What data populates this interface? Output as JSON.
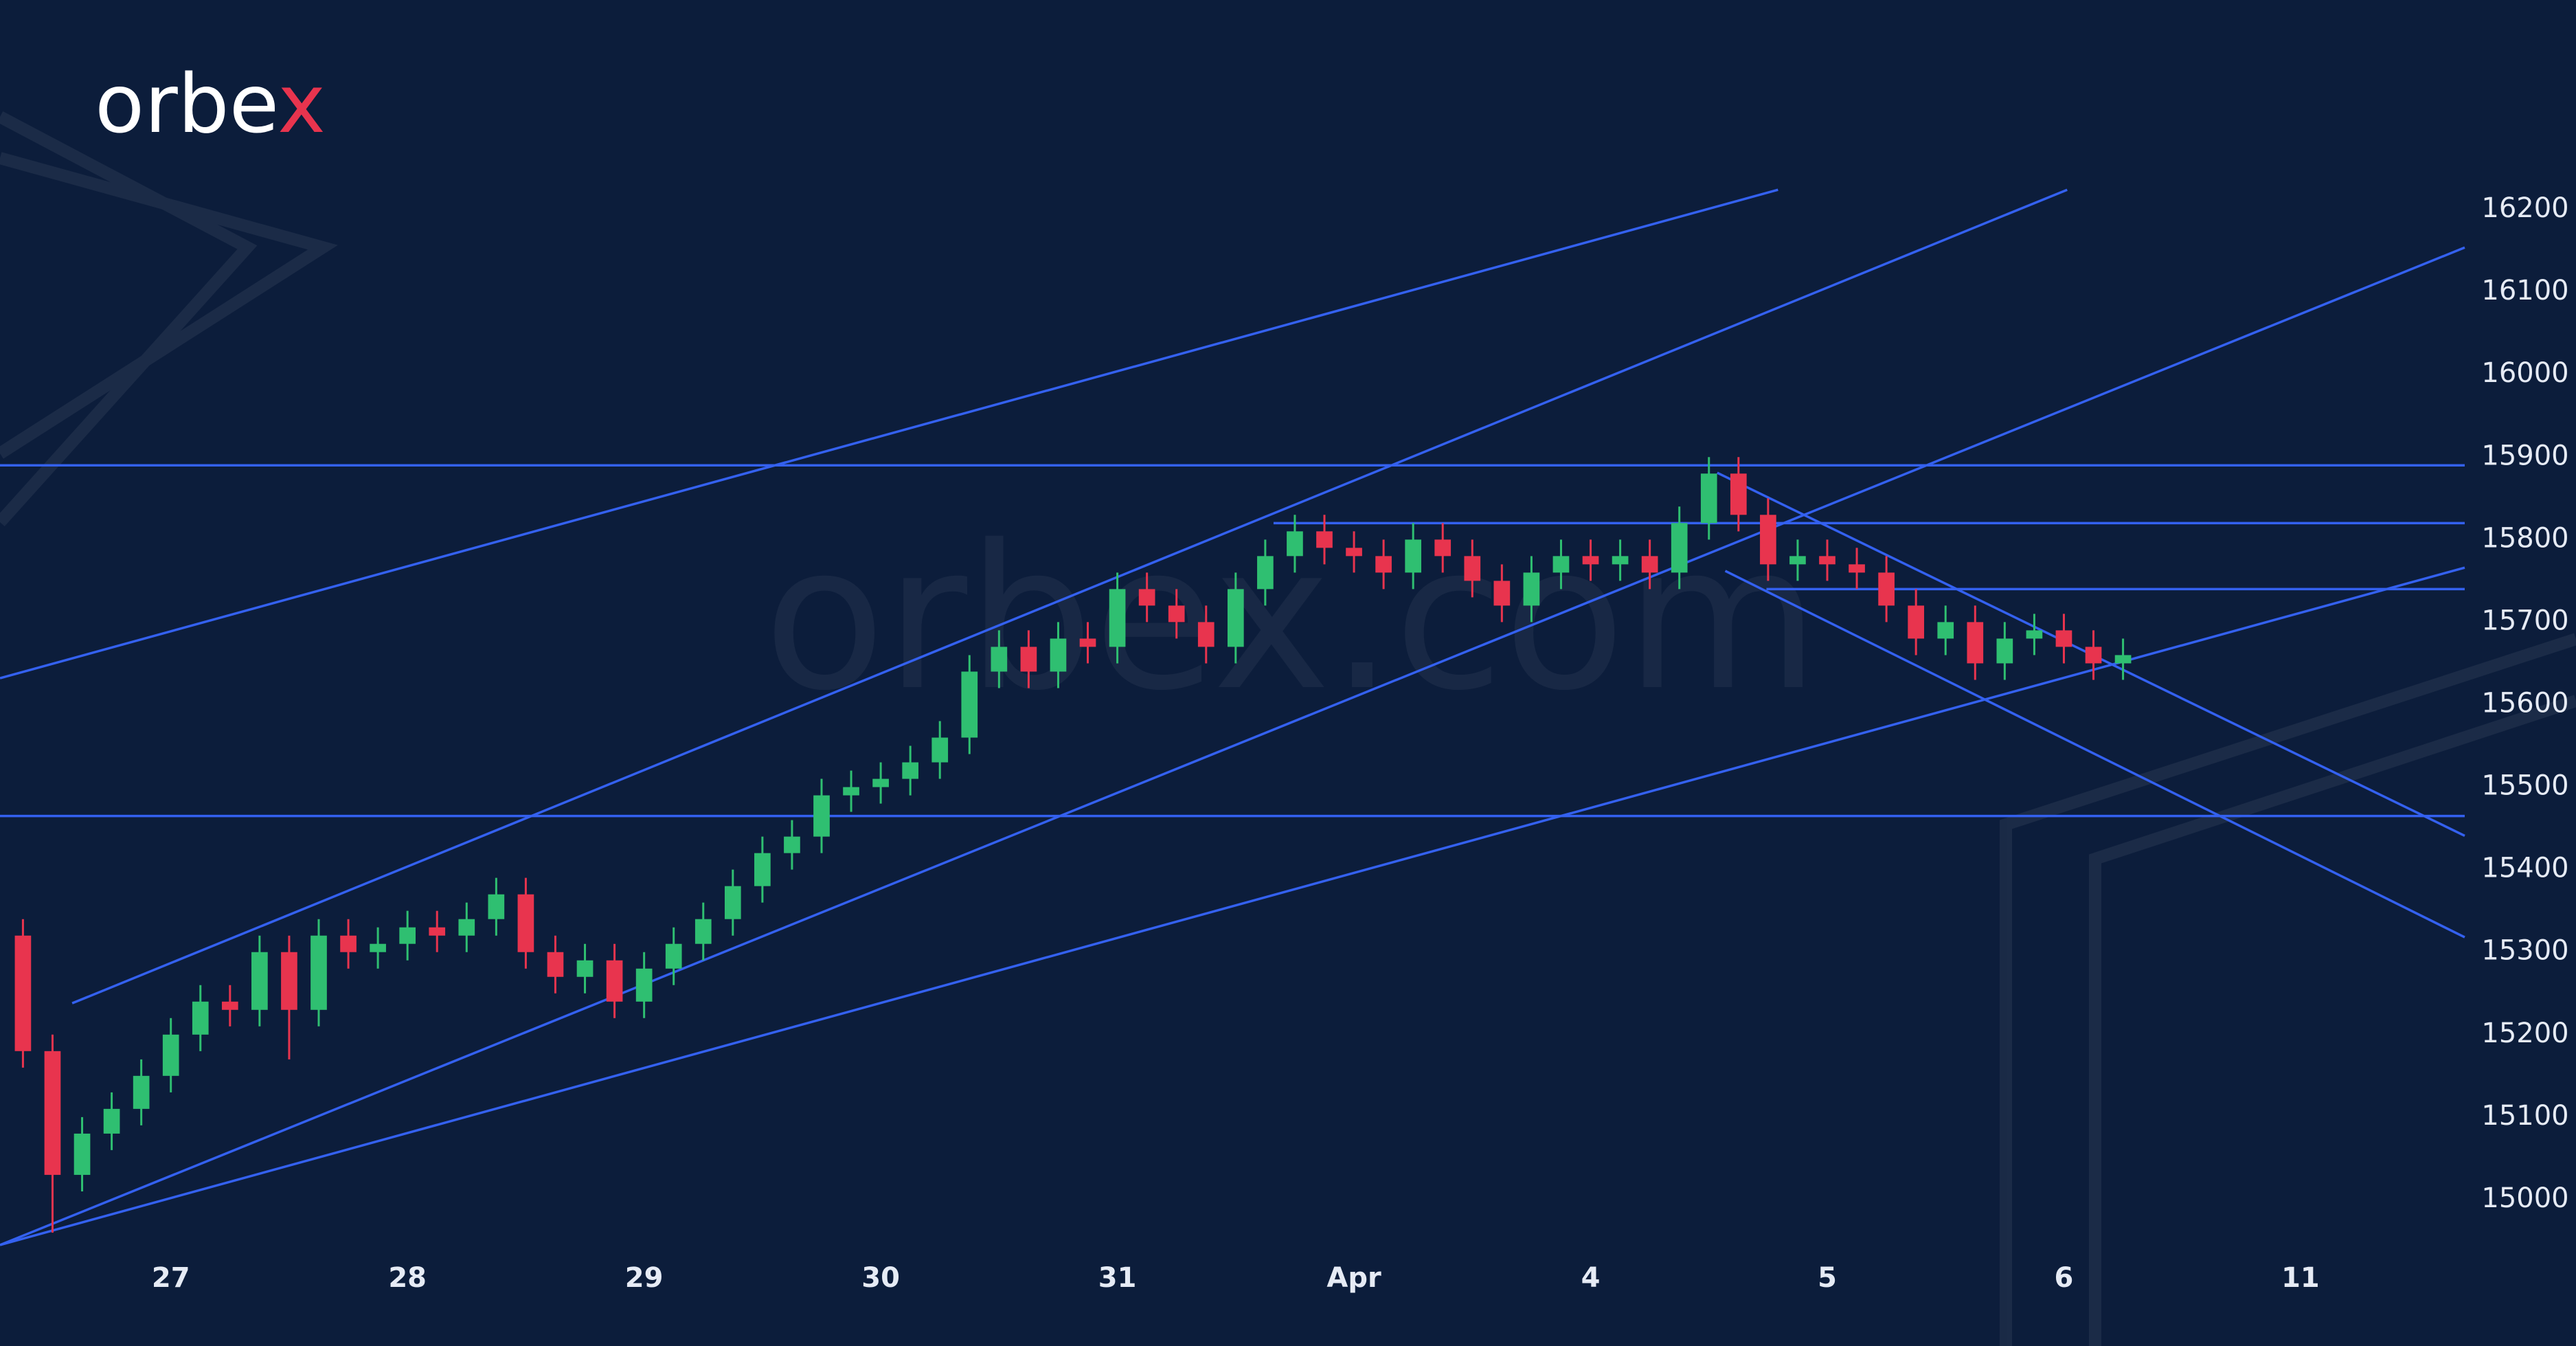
{
  "logo": {
    "main": "orbe",
    "accent": "x"
  },
  "watermark": "orbex.com",
  "chart_data": {
    "type": "candlestick",
    "up_color": "#2fbf71",
    "down_color": "#e8344e",
    "line_color": "#3461f0",
    "xlim": [
      -0.722,
      9.694
    ],
    "ylim": [
      14940,
      16225
    ],
    "xticks": [
      {
        "value": 0,
        "label": "27"
      },
      {
        "value": 1,
        "label": "28"
      },
      {
        "value": 2,
        "label": "29"
      },
      {
        "value": 3,
        "label": "30"
      },
      {
        "value": 4,
        "label": "31"
      },
      {
        "value": 5,
        "label": "Apr"
      },
      {
        "value": 6,
        "label": "4"
      },
      {
        "value": 7,
        "label": "5"
      },
      {
        "value": 8,
        "label": "6"
      },
      {
        "value": 9,
        "label": "11"
      }
    ],
    "yticks": [
      15000,
      15100,
      15200,
      15300,
      15400,
      15500,
      15600,
      15700,
      15800,
      15900,
      16000,
      16100,
      16200
    ],
    "x": [
      -0.625,
      -0.5,
      -0.375,
      -0.25,
      -0.125,
      0,
      0.125,
      0.25,
      0.375,
      0.5,
      0.625,
      0.75,
      0.875,
      1,
      1.125,
      1.25,
      1.375,
      1.5,
      1.625,
      1.75,
      1.875,
      2,
      2.125,
      2.25,
      2.375,
      2.5,
      2.625,
      2.75,
      2.875,
      3,
      3.125,
      3.25,
      3.375,
      3.5,
      3.625,
      3.75,
      3.875,
      4,
      4.125,
      4.25,
      4.375,
      4.5,
      4.625,
      4.75,
      4.875,
      5,
      5.125,
      5.25,
      5.375,
      5.5,
      5.625,
      5.75,
      5.875,
      6,
      6.125,
      6.25,
      6.375,
      6.5,
      6.625,
      6.75,
      6.875,
      7,
      7.125,
      7.25,
      7.375,
      7.5,
      7.625,
      7.75,
      7.875,
      8,
      8.125,
      8.25
    ],
    "open": [
      15320,
      15180,
      15030,
      15080,
      15110,
      15150,
      15200,
      15240,
      15230,
      15300,
      15230,
      15320,
      15300,
      15310,
      15330,
      15320,
      15340,
      15370,
      15300,
      15270,
      15290,
      15240,
      15280,
      15310,
      15340,
      15380,
      15420,
      15440,
      15490,
      15500,
      15510,
      15530,
      15560,
      15640,
      15670,
      15640,
      15680,
      15670,
      15740,
      15720,
      15700,
      15670,
      15740,
      15780,
      15810,
      15790,
      15780,
      15760,
      15800,
      15780,
      15750,
      15720,
      15760,
      15780,
      15770,
      15780,
      15760,
      15820,
      15880,
      15830,
      15770,
      15780,
      15770,
      15760,
      15720,
      15680,
      15700,
      15650,
      15680,
      15690,
      15670,
      15650
    ],
    "high": [
      15340,
      15200,
      15100,
      15130,
      15170,
      15220,
      15260,
      15260,
      15320,
      15320,
      15340,
      15340,
      15330,
      15350,
      15350,
      15360,
      15390,
      15390,
      15320,
      15310,
      15310,
      15300,
      15330,
      15360,
      15400,
      15440,
      15460,
      15510,
      15520,
      15530,
      15550,
      15580,
      15660,
      15690,
      15690,
      15700,
      15700,
      15760,
      15760,
      15740,
      15720,
      15760,
      15800,
      15830,
      15830,
      15810,
      15800,
      15820,
      15820,
      15800,
      15770,
      15780,
      15800,
      15800,
      15800,
      15800,
      15840,
      15900,
      15900,
      15850,
      15800,
      15800,
      15790,
      15780,
      15740,
      15720,
      15720,
      15700,
      15710,
      15710,
      15690,
      15680
    ],
    "low": [
      15160,
      14960,
      15010,
      15060,
      15090,
      15130,
      15180,
      15210,
      15210,
      15170,
      15210,
      15280,
      15280,
      15290,
      15300,
      15300,
      15320,
      15280,
      15250,
      15250,
      15220,
      15220,
      15260,
      15290,
      15320,
      15360,
      15400,
      15420,
      15470,
      15480,
      15490,
      15510,
      15540,
      15620,
      15620,
      15620,
      15650,
      15650,
      15700,
      15680,
      15650,
      15650,
      15720,
      15760,
      15770,
      15760,
      15740,
      15740,
      15760,
      15730,
      15700,
      15700,
      15740,
      15750,
      15750,
      15740,
      15740,
      15800,
      15810,
      15750,
      15750,
      15750,
      15740,
      15700,
      15660,
      15660,
      15630,
      15630,
      15660,
      15650,
      15630,
      15630
    ],
    "close": [
      15180,
      15030,
      15080,
      15110,
      15150,
      15200,
      15240,
      15230,
      15300,
      15230,
      15320,
      15300,
      15310,
      15330,
      15320,
      15340,
      15370,
      15300,
      15270,
      15290,
      15240,
      15280,
      15310,
      15340,
      15380,
      15420,
      15440,
      15490,
      15500,
      15510,
      15530,
      15560,
      15640,
      15670,
      15640,
      15680,
      15670,
      15740,
      15720,
      15700,
      15670,
      15740,
      15780,
      15810,
      15790,
      15780,
      15760,
      15800,
      15780,
      15750,
      15720,
      15760,
      15780,
      15770,
      15780,
      15760,
      15820,
      15880,
      15830,
      15770,
      15780,
      15770,
      15760,
      15720,
      15680,
      15700,
      15650,
      15680,
      15690,
      15670,
      15650,
      15660
    ],
    "lines": [
      {
        "x": [
          -0.722,
          6.792
        ],
        "y": [
          15632,
          16224
        ]
      },
      {
        "x": [
          -0.417,
          8.014
        ],
        "y": [
          15238,
          16224
        ]
      },
      {
        "x": [
          -0.722,
          9.694
        ],
        "y": [
          14945,
          16154
        ]
      },
      {
        "x": [
          -0.722,
          9.694
        ],
        "y": [
          14945,
          15766
        ]
      },
      {
        "x": [
          6.535,
          9.694
        ],
        "y": [
          15881,
          15441
        ]
      },
      {
        "x": [
          6.569,
          9.694
        ],
        "y": [
          15762,
          15318
        ]
      },
      {
        "x": [
          -0.722,
          9.694
        ],
        "y": [
          15890,
          15890
        ]
      },
      {
        "x": [
          4.66,
          9.694
        ],
        "y": [
          15820,
          15820
        ]
      },
      {
        "x": [
          6.743,
          9.694
        ],
        "y": [
          15740,
          15740
        ]
      },
      {
        "x": [
          -0.722,
          9.694
        ],
        "y": [
          15465,
          15465
        ]
      }
    ]
  }
}
